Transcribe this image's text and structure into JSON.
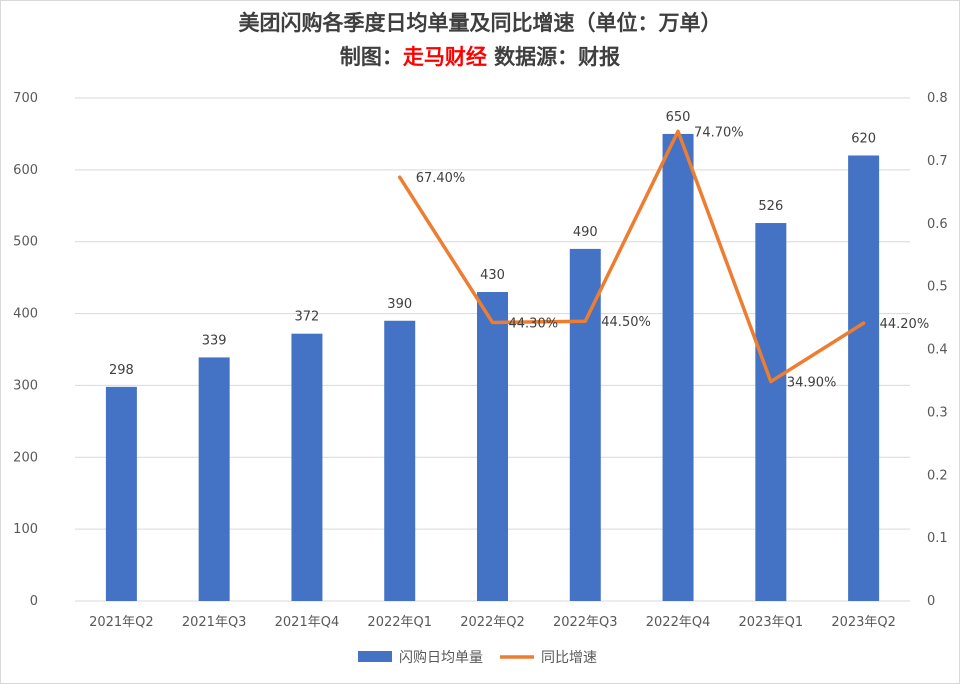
{
  "title_line1": "美团闪购各季度日均单量及同比增速（单位：万单）",
  "subtitle_prefix": "制图：",
  "subtitle_brand": "走马财经",
  "subtitle_suffix": " 数据源：财报",
  "colors": {
    "bar": "#4472c4",
    "line": "#ed7d31",
    "grid": "#d9d9d9",
    "brand": "#ff0000"
  },
  "chart_data": {
    "type": "bar",
    "categories": [
      "2021年Q2",
      "2021年Q3",
      "2021年Q4",
      "2022年Q1",
      "2022年Q2",
      "2022年Q3",
      "2022年Q4",
      "2023年Q1",
      "2023年Q2"
    ],
    "series": [
      {
        "name": "闪购日均单量",
        "type": "bar",
        "axis": "left",
        "values": [
          298,
          339,
          372,
          390,
          430,
          490,
          650,
          526,
          620
        ],
        "labels": [
          "298",
          "339",
          "372",
          "390",
          "430",
          "490",
          "650",
          "526",
          "620"
        ]
      },
      {
        "name": "同比增速",
        "type": "line",
        "axis": "right",
        "values": [
          null,
          null,
          null,
          0.674,
          0.443,
          0.445,
          0.747,
          0.349,
          0.442
        ],
        "labels": [
          "",
          "",
          "",
          "67.40%",
          "44.30%",
          "44.50%",
          "74.70%",
          "34.90%",
          "44.20%"
        ]
      }
    ],
    "y_left": {
      "min": 0,
      "max": 700,
      "ticks": [
        "0",
        "100",
        "200",
        "300",
        "400",
        "500",
        "600",
        "700"
      ]
    },
    "y_right": {
      "min": 0,
      "max": 0.8,
      "ticks": [
        "0",
        "0.1",
        "0.2",
        "0.3",
        "0.4",
        "0.5",
        "0.6",
        "0.7",
        "0.8"
      ]
    },
    "grid": true,
    "legend_position": "bottom"
  }
}
